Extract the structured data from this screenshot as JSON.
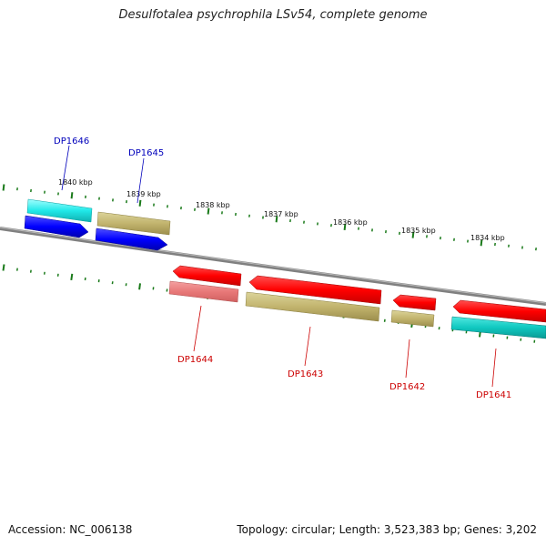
{
  "title": "Desulfotalea psychrophila LSv54, complete genome",
  "footer": {
    "accession": "Accession: NC_006138",
    "summary": "Topology: circular; Length: 3,523,383 bp; Genes: 3,202"
  },
  "colors": {
    "backbone": "#808080",
    "tick": "#1a7a1a",
    "label_plus": "#0000bb",
    "label_minus": "#cc0000"
  },
  "scale_labels": [
    "1840 kbp",
    "1839 kbp",
    "1838 kbp",
    "1837 kbp",
    "1836 kbp",
    "1835 kbp",
    "1834 kbp"
  ],
  "gene_labels": [
    {
      "text": "DP1646",
      "strand": "+"
    },
    {
      "text": "DP1645",
      "strand": "+"
    },
    {
      "text": "DP1644",
      "strand": "-"
    },
    {
      "text": "DP1643",
      "strand": "-"
    },
    {
      "text": "DP1642",
      "strand": "-"
    },
    {
      "text": "DP1641",
      "strand": "-"
    }
  ]
}
